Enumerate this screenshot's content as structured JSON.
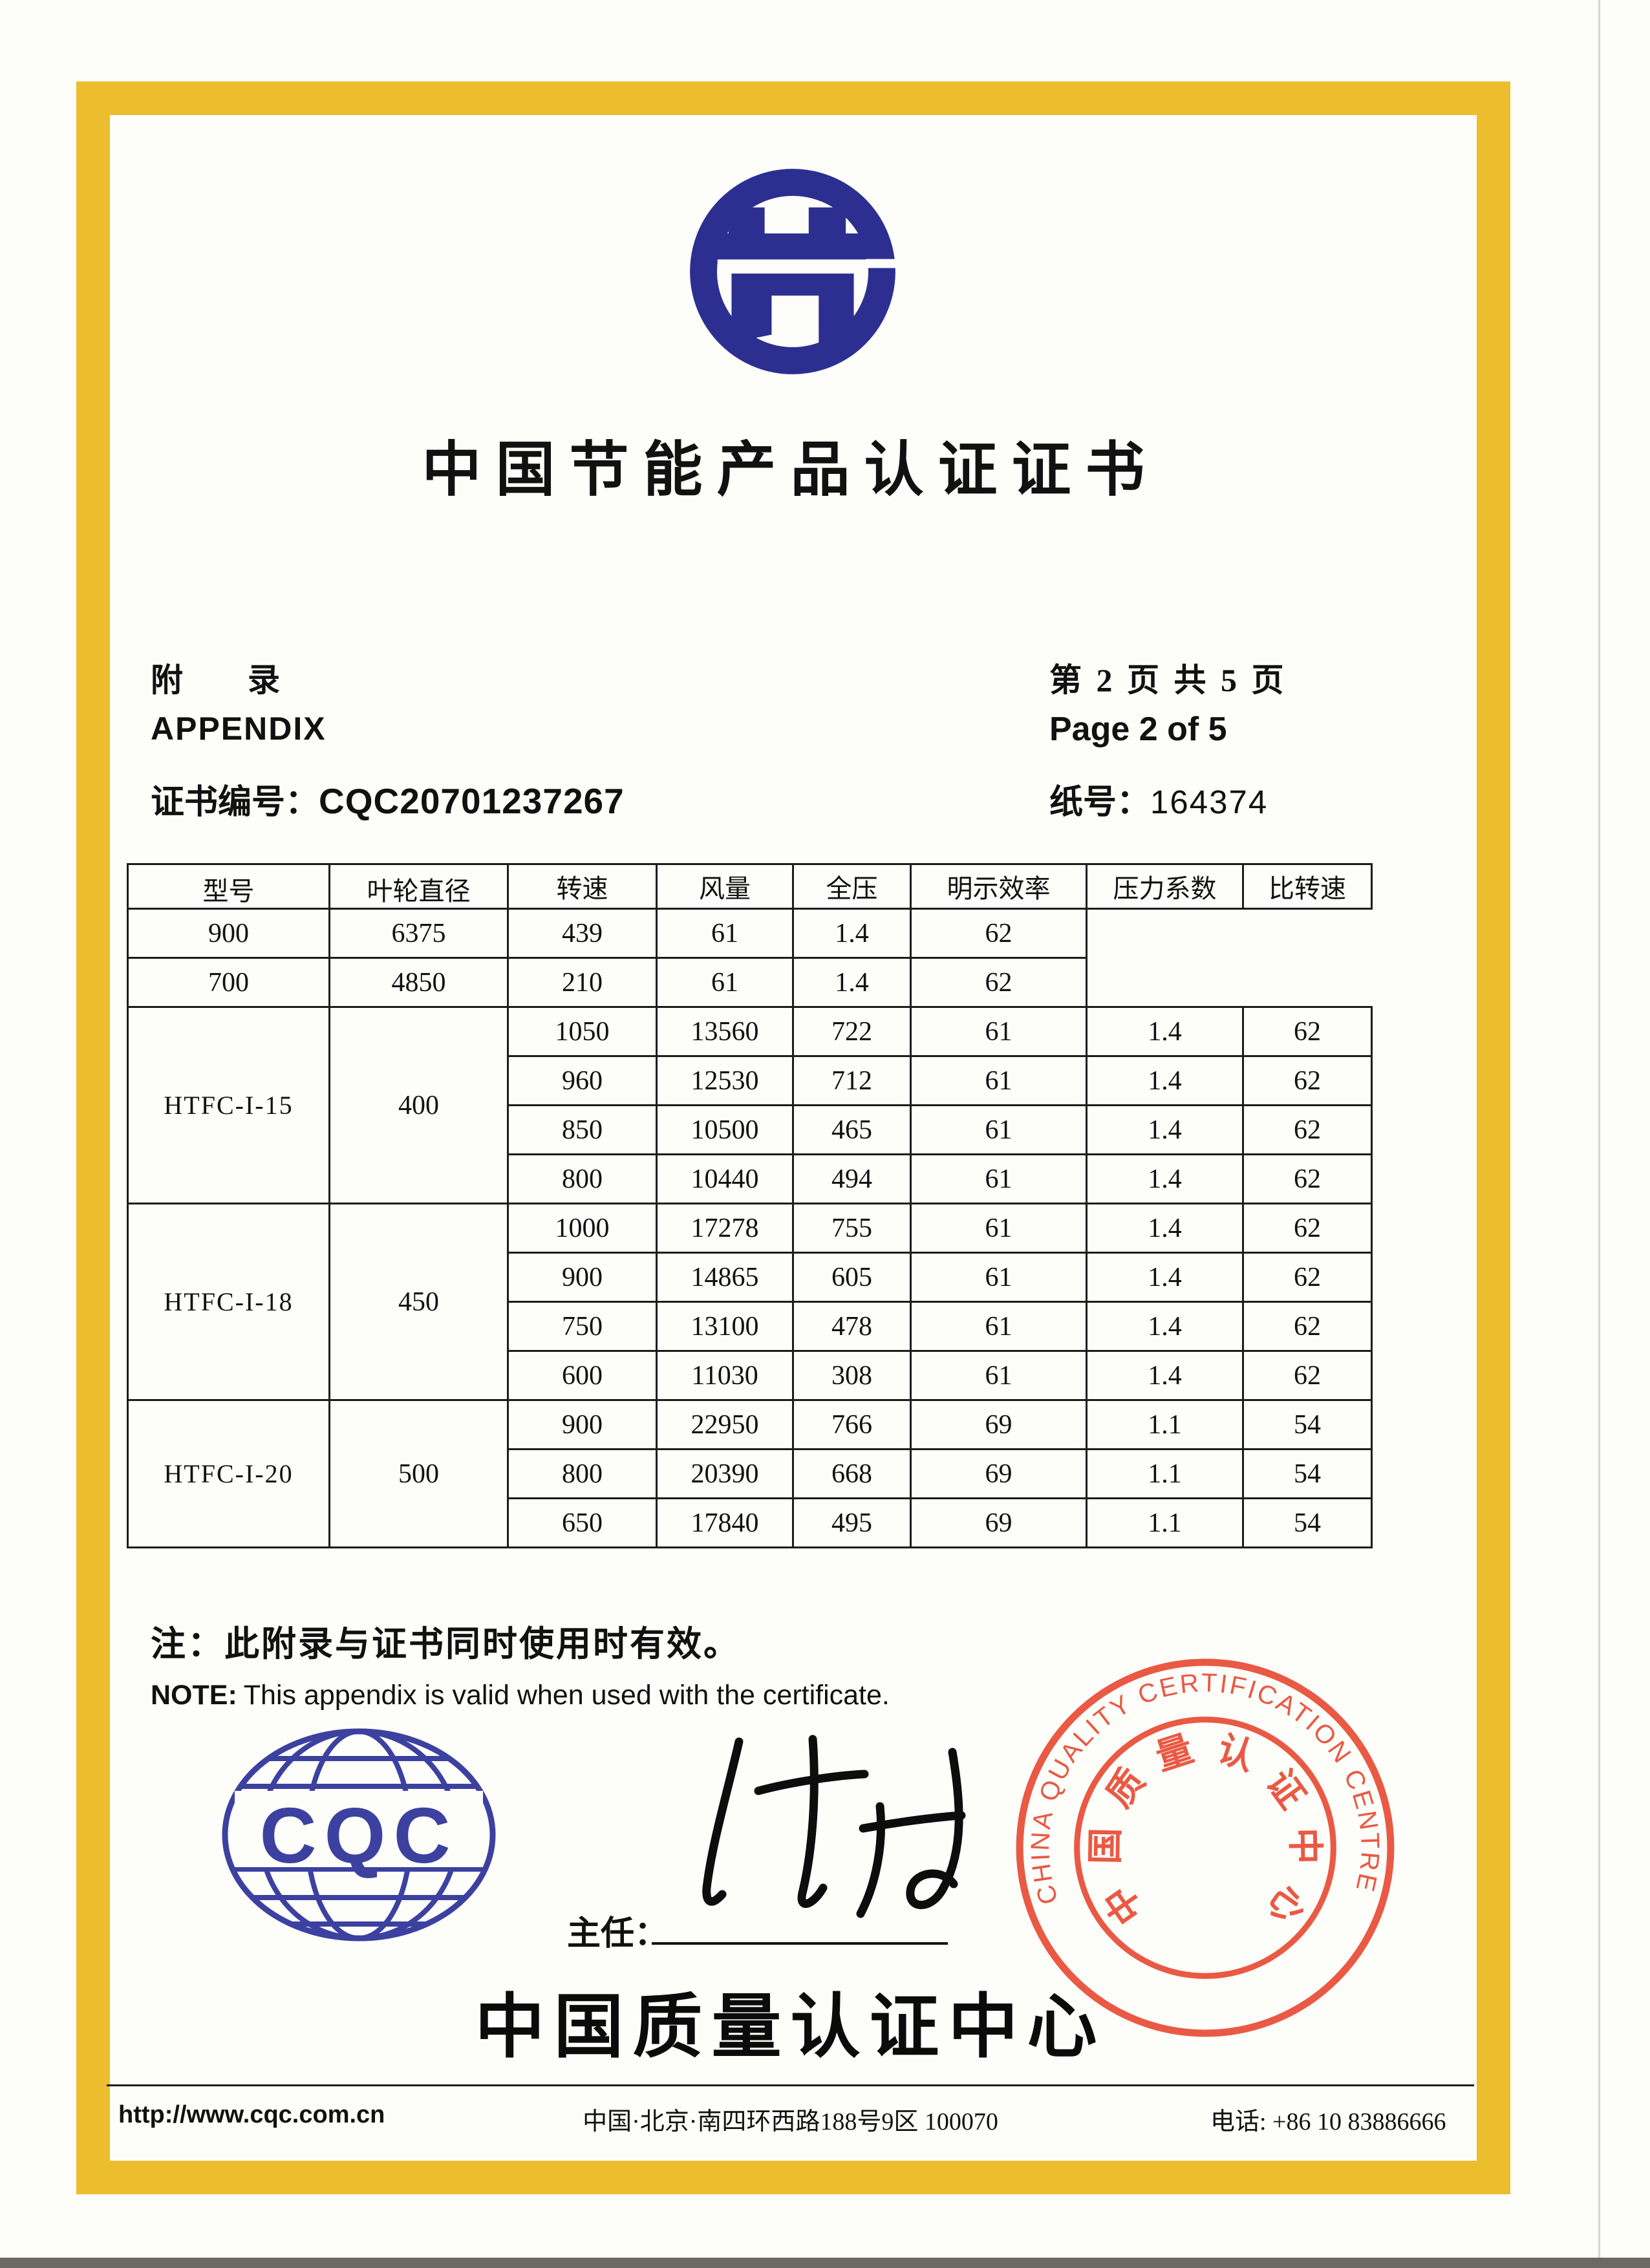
{
  "colors": {
    "frame_gold": "#ecbe2e",
    "logo_navy": "#2c2f90",
    "cqc_blue": "#3c41a0",
    "stamp_red": "#e8432a",
    "text_black": "#111111"
  },
  "header": {
    "title": "中国节能产品认证证书",
    "appendix_cn": "附　　录",
    "appendix_en": "APPENDIX",
    "cert_no_label": "证书编号：",
    "cert_no_value": "CQC20701237267",
    "page_cn": "第 2 页 共 5 页",
    "page_en": "Page 2 of 5",
    "paper_no_label": "纸号：",
    "paper_no_value": "164374"
  },
  "table": {
    "headers": [
      "型号",
      "叶轮直径",
      "转速",
      "风量",
      "全压",
      "明示效率",
      "压力系数",
      "比转速"
    ],
    "groups": [
      {
        "model": "",
        "diameter": "",
        "rows": [
          [
            "900",
            "6375",
            "439",
            "61",
            "1.4",
            "62"
          ],
          [
            "700",
            "4850",
            "210",
            "61",
            "1.4",
            "62"
          ]
        ]
      },
      {
        "model": "HTFC-I-15",
        "diameter": "400",
        "rows": [
          [
            "1050",
            "13560",
            "722",
            "61",
            "1.4",
            "62"
          ],
          [
            "960",
            "12530",
            "712",
            "61",
            "1.4",
            "62"
          ],
          [
            "850",
            "10500",
            "465",
            "61",
            "1.4",
            "62"
          ],
          [
            "800",
            "10440",
            "494",
            "61",
            "1.4",
            "62"
          ]
        ]
      },
      {
        "model": "HTFC-I-18",
        "diameter": "450",
        "rows": [
          [
            "1000",
            "17278",
            "755",
            "61",
            "1.4",
            "62"
          ],
          [
            "900",
            "14865",
            "605",
            "61",
            "1.4",
            "62"
          ],
          [
            "750",
            "13100",
            "478",
            "61",
            "1.4",
            "62"
          ],
          [
            "600",
            "11030",
            "308",
            "61",
            "1.4",
            "62"
          ]
        ]
      },
      {
        "model": "HTFC-I-20",
        "diameter": "500",
        "rows": [
          [
            "900",
            "22950",
            "766",
            "69",
            "1.1",
            "54"
          ],
          [
            "800",
            "20390",
            "668",
            "69",
            "1.1",
            "54"
          ],
          [
            "650",
            "17840",
            "495",
            "69",
            "1.1",
            "54"
          ]
        ]
      }
    ]
  },
  "notes": {
    "cn": "注：此附录与证书同时使用时有效。",
    "en_label": "NOTE:",
    "en_text": "This appendix is valid when used with the certificate."
  },
  "signing": {
    "director_label": "主任："
  },
  "org": {
    "name_cn": "中国质量认证中心",
    "cqc_acronym": "CQC"
  },
  "stamp": {
    "ring_text": "CHINA QUALITY CERTIFICATION CENTRE",
    "inner_chars": [
      "中",
      "国",
      "质",
      "量",
      "认",
      "证",
      "中",
      "心"
    ]
  },
  "footer": {
    "website": "http://www.cqc.com.cn",
    "address": "中国·北京·南四环西路188号9区 100070",
    "phone": "电话: +86 10 83886666"
  }
}
